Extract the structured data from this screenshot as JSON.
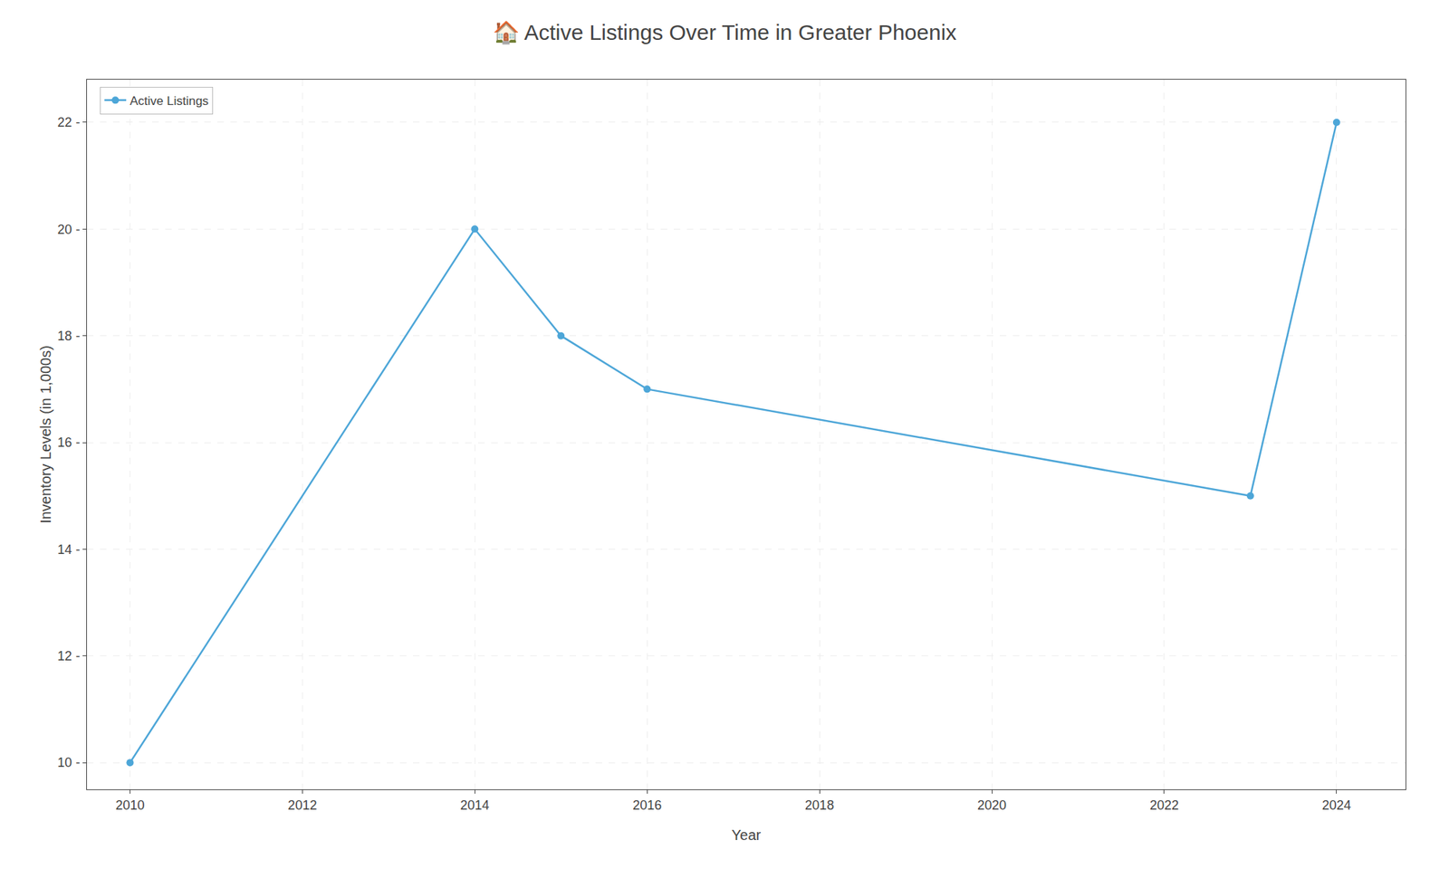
{
  "chart_data": {
    "type": "line",
    "title": "🏠 Active Listings Over Time in Greater Phoenix",
    "xlabel": "Year",
    "ylabel": "Inventory Levels (in 1,000s)",
    "x": [
      2010,
      2014,
      2015,
      2016,
      2023,
      2024
    ],
    "series": [
      {
        "name": "Active Listings",
        "color": "#4da6d8",
        "marker": "circle",
        "values": [
          10,
          20,
          18,
          17,
          15,
          22
        ]
      }
    ],
    "xlim": [
      2009.5,
      2024.8
    ],
    "ylim": [
      9.5,
      22.8
    ],
    "xticks": [
      2010,
      2012,
      2014,
      2016,
      2018,
      2020,
      2022,
      2024
    ],
    "yticks": [
      {
        "value": 10,
        "label": "10 -"
      },
      {
        "value": 12,
        "label": "12 -"
      },
      {
        "value": 14,
        "label": "14 -"
      },
      {
        "value": 16,
        "label": "16 -"
      },
      {
        "value": 18,
        "label": "18 -"
      },
      {
        "value": 20,
        "label": "20 -"
      },
      {
        "value": 22,
        "label": "22 -"
      }
    ],
    "grid": true,
    "legend": "upper left"
  }
}
